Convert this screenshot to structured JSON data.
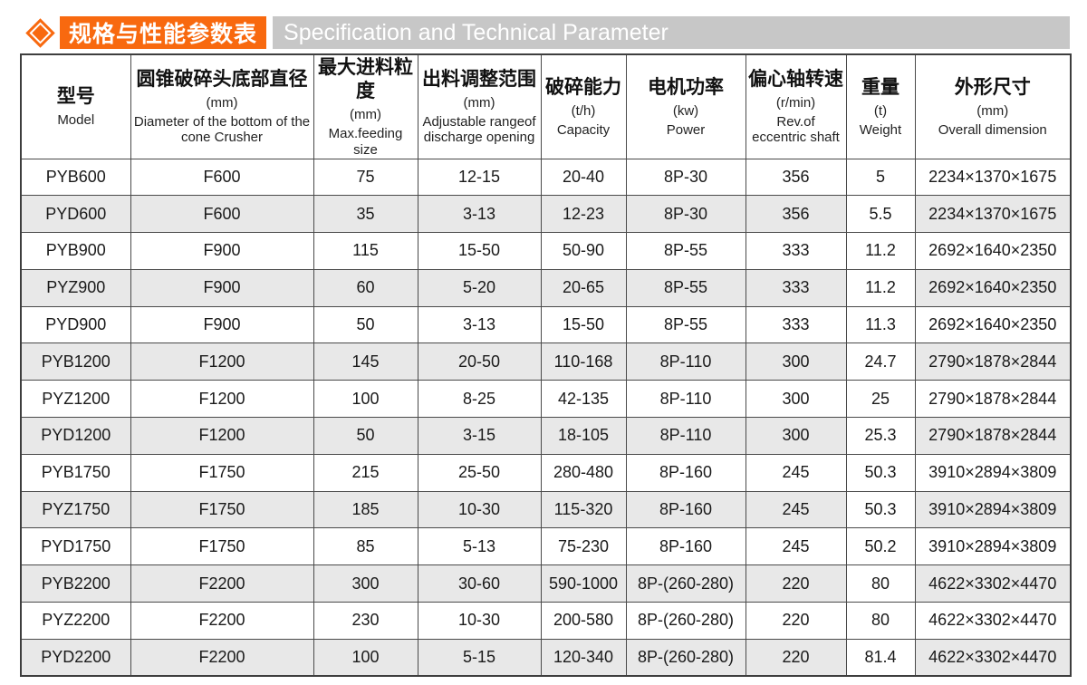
{
  "banner": {
    "icon": "diamond-icon",
    "title_zh": "规格与性能参数表",
    "title_en": "Specification and Technical Parameter"
  },
  "colors": {
    "accent_orange": "#f8690f",
    "band_gray": "#c7c7c7",
    "row_stripe_gray": "#e8e8e8",
    "table_border": "#4a4a4a"
  },
  "table": {
    "columns": [
      {
        "zh": "型号",
        "unit": "",
        "en": "Model"
      },
      {
        "zh": "圆锥破碎头底部直径",
        "unit": "(mm)",
        "en": "Diameter of the bottom of the cone Crusher"
      },
      {
        "zh": "最大进料粒度",
        "unit": "(mm)",
        "en": "Max.feeding size"
      },
      {
        "zh": "出料调整范围",
        "unit": "(mm)",
        "en": "Adjustable rangeof discharge opening"
      },
      {
        "zh": "破碎能力",
        "unit": "(t/h)",
        "en": "Capacity"
      },
      {
        "zh": "电机功率",
        "unit": "(kw)",
        "en": "Power"
      },
      {
        "zh": "偏心轴转速",
        "unit": "(r/min)",
        "en": "Rev.of eccentric shaft"
      },
      {
        "zh": "重量",
        "unit": "(t)",
        "en": "Weight"
      },
      {
        "zh": "外形尺寸",
        "unit": "(mm)",
        "en": "Overall dimension"
      }
    ],
    "rows": [
      [
        "PYB600",
        "F600",
        "75",
        "12-15",
        "20-40",
        "8P-30",
        "356",
        "5",
        "2234×1370×1675"
      ],
      [
        "PYD600",
        "F600",
        "35",
        "3-13",
        "12-23",
        "8P-30",
        "356",
        "5.5",
        "2234×1370×1675"
      ],
      [
        "PYB900",
        "F900",
        "115",
        "15-50",
        "50-90",
        "8P-55",
        "333",
        "11.2",
        "2692×1640×2350"
      ],
      [
        "PYZ900",
        "F900",
        "60",
        "5-20",
        "20-65",
        "8P-55",
        "333",
        "11.2",
        "2692×1640×2350"
      ],
      [
        "PYD900",
        "F900",
        "50",
        "3-13",
        "15-50",
        "8P-55",
        "333",
        "11.3",
        "2692×1640×2350"
      ],
      [
        "PYB1200",
        "F1200",
        "145",
        "20-50",
        "110-168",
        "8P-110",
        "300",
        "24.7",
        "2790×1878×2844"
      ],
      [
        "PYZ1200",
        "F1200",
        "100",
        "8-25",
        "42-135",
        "8P-110",
        "300",
        "25",
        "2790×1878×2844"
      ],
      [
        "PYD1200",
        "F1200",
        "50",
        "3-15",
        "18-105",
        "8P-110",
        "300",
        "25.3",
        "2790×1878×2844"
      ],
      [
        "PYB1750",
        "F1750",
        "215",
        "25-50",
        "280-480",
        "8P-160",
        "245",
        "50.3",
        "3910×2894×3809"
      ],
      [
        "PYZ1750",
        "F1750",
        "185",
        "10-30",
        "115-320",
        "8P-160",
        "245",
        "50.3",
        "3910×2894×3809"
      ],
      [
        "PYD1750",
        "F1750",
        "85",
        "5-13",
        "75-230",
        "8P-160",
        "245",
        "50.2",
        "3910×2894×3809"
      ],
      [
        "PYB2200",
        "F2200",
        "300",
        "30-60",
        "590-1000",
        "8P-(260-280)",
        "220",
        "80",
        "4622×3302×4470"
      ],
      [
        "PYZ2200",
        "F2200",
        "230",
        "10-30",
        "200-580",
        "8P-(260-280)",
        "220",
        "80",
        "4622×3302×4470"
      ],
      [
        "PYD2200",
        "F2200",
        "100",
        "5-15",
        "120-340",
        "8P-(260-280)",
        "220",
        "81.4",
        "4622×3302×4470"
      ]
    ]
  }
}
